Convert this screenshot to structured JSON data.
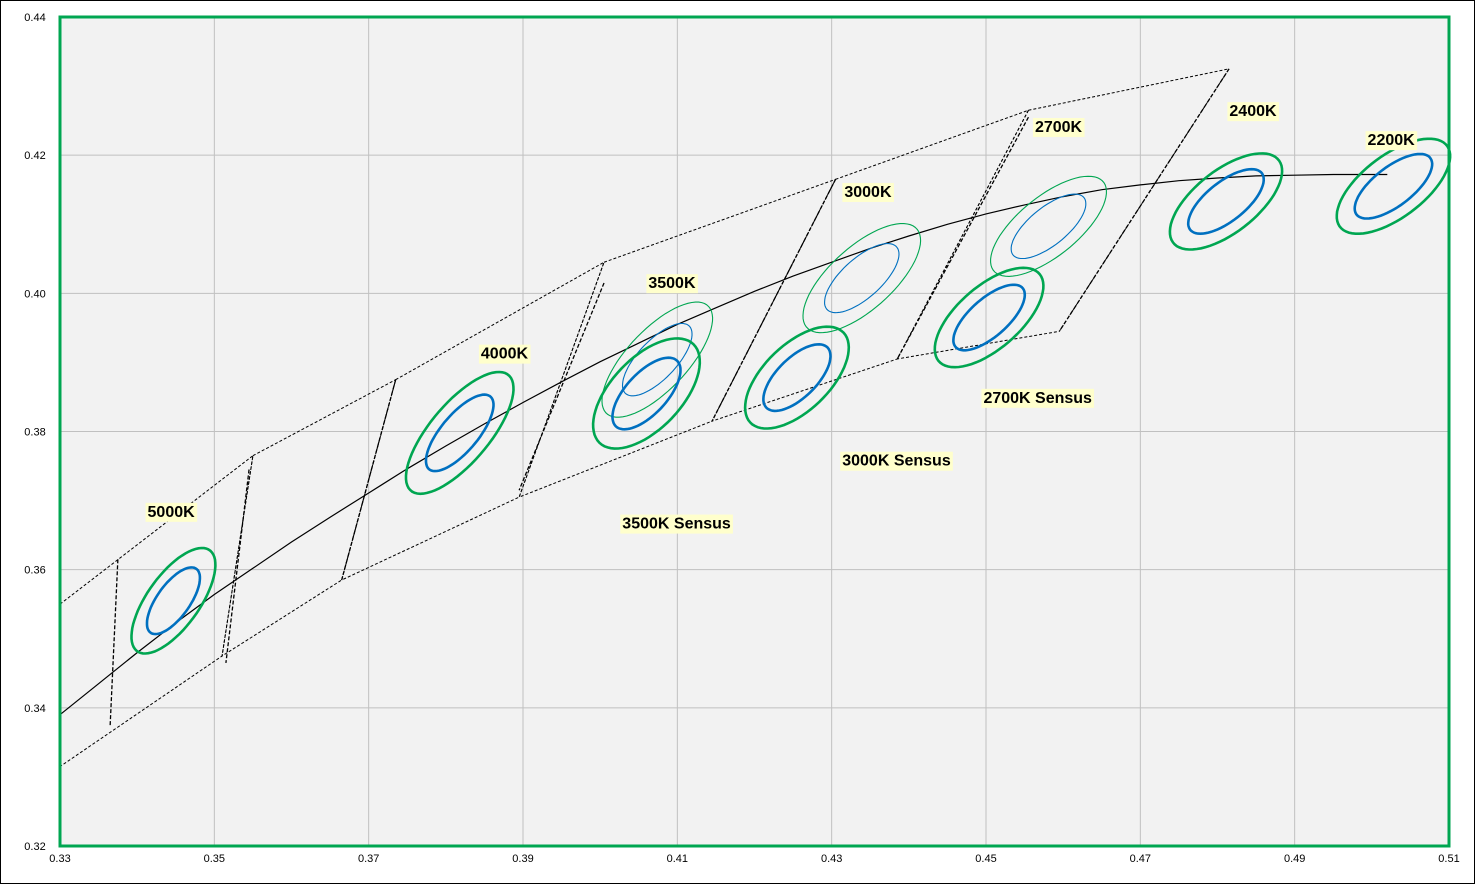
{
  "chart_data": {
    "type": "scatter",
    "title": "",
    "xlabel": "",
    "ylabel": "",
    "xlim": [
      0.33,
      0.51
    ],
    "ylim": [
      0.32,
      0.44
    ],
    "grid": true,
    "x_ticks": [
      "0.33",
      "0.35",
      "0.37",
      "0.39",
      "0.41",
      "0.43",
      "0.45",
      "0.47",
      "0.49",
      "0.51"
    ],
    "y_ticks": [
      "0.32",
      "0.34",
      "0.36",
      "0.38",
      "0.40",
      "0.42",
      "0.44"
    ],
    "colors": {
      "plot_border": "#00a651",
      "plot_background": "#f2f2f2",
      "gridline": "#c0c0c0",
      "ellipse_outer": "#00a651",
      "ellipse_inner": "#0070c0",
      "locus": "#000000",
      "label_background": "#ffffcc"
    },
    "blackbody_locus": [
      {
        "x": 0.33,
        "y": 0.339
      },
      {
        "x": 0.335,
        "y": 0.3435
      },
      {
        "x": 0.34,
        "y": 0.348
      },
      {
        "x": 0.345,
        "y": 0.3523
      },
      {
        "x": 0.35,
        "y": 0.3564
      },
      {
        "x": 0.355,
        "y": 0.3602
      },
      {
        "x": 0.36,
        "y": 0.364
      },
      {
        "x": 0.365,
        "y": 0.3676
      },
      {
        "x": 0.37,
        "y": 0.3711
      },
      {
        "x": 0.375,
        "y": 0.3746
      },
      {
        "x": 0.38,
        "y": 0.3779
      },
      {
        "x": 0.385,
        "y": 0.3811
      },
      {
        "x": 0.39,
        "y": 0.3842
      },
      {
        "x": 0.395,
        "y": 0.3872
      },
      {
        "x": 0.4,
        "y": 0.3901
      },
      {
        "x": 0.405,
        "y": 0.3928
      },
      {
        "x": 0.41,
        "y": 0.3955
      },
      {
        "x": 0.415,
        "y": 0.3979
      },
      {
        "x": 0.42,
        "y": 0.4003
      },
      {
        "x": 0.425,
        "y": 0.4025
      },
      {
        "x": 0.43,
        "y": 0.4045
      },
      {
        "x": 0.435,
        "y": 0.4065
      },
      {
        "x": 0.44,
        "y": 0.4083
      },
      {
        "x": 0.445,
        "y": 0.41
      },
      {
        "x": 0.45,
        "y": 0.4115
      },
      {
        "x": 0.455,
        "y": 0.4128
      },
      {
        "x": 0.46,
        "y": 0.414
      },
      {
        "x": 0.465,
        "y": 0.415
      },
      {
        "x": 0.47,
        "y": 0.4157
      },
      {
        "x": 0.475,
        "y": 0.4163
      },
      {
        "x": 0.48,
        "y": 0.4167
      },
      {
        "x": 0.485,
        "y": 0.417
      },
      {
        "x": 0.49,
        "y": 0.4171
      },
      {
        "x": 0.495,
        "y": 0.4172
      },
      {
        "x": 0.5,
        "y": 0.4172
      },
      {
        "x": 0.502,
        "y": 0.4172
      }
    ],
    "bin_boundaries": [
      [
        [
          0.33,
          0.355
        ],
        [
          0.355,
          0.3765
        ],
        [
          0.351,
          0.3475
        ],
        [
          0.33,
          0.3315
        ]
      ],
      [
        [
          0.355,
          0.3765
        ],
        [
          0.3735,
          0.3875
        ],
        [
          0.3665,
          0.3585
        ],
        [
          0.351,
          0.3475
        ]
      ],
      [
        [
          0.3735,
          0.3875
        ],
        [
          0.4005,
          0.4045
        ],
        [
          0.3895,
          0.3705
        ],
        [
          0.3665,
          0.3585
        ]
      ],
      [
        [
          0.4005,
          0.4045
        ],
        [
          0.4305,
          0.4165
        ],
        [
          0.4145,
          0.3815
        ],
        [
          0.3895,
          0.3705
        ]
      ],
      [
        [
          0.4305,
          0.4165
        ],
        [
          0.4555,
          0.4265
        ],
        [
          0.4385,
          0.3905
        ],
        [
          0.4145,
          0.3815
        ]
      ],
      [
        [
          0.4555,
          0.4265
        ],
        [
          0.4815,
          0.4325
        ],
        [
          0.4595,
          0.3945
        ],
        [
          0.4385,
          0.3905
        ]
      ]
    ],
    "bin_dividers": [
      [
        [
          0.3375,
          0.3615
        ],
        [
          0.3365,
          0.3375
        ]
      ],
      [
        [
          0.3545,
          0.3745
        ],
        [
          0.3515,
          0.3465
        ]
      ],
      [
        [
          0.3735,
          0.3875
        ],
        [
          0.3665,
          0.3585
        ]
      ],
      [
        [
          0.4005,
          0.4015
        ],
        [
          0.3895,
          0.3715
        ]
      ],
      [
        [
          0.4305,
          0.4165
        ],
        [
          0.4145,
          0.3815
        ]
      ],
      [
        [
          0.4555,
          0.4255
        ],
        [
          0.4385,
          0.3905
        ]
      ],
      [
        [
          0.4815,
          0.4325
        ],
        [
          0.4595,
          0.3945
        ]
      ]
    ],
    "ellipses": [
      {
        "cx": 0.3447,
        "cy": 0.3555,
        "inner_a": 0.0055,
        "inner_b": 0.0022,
        "outer_a": 0.0087,
        "outer_b": 0.0035,
        "angle_deg": 58.5,
        "weight": "bold"
      },
      {
        "cx": 0.3818,
        "cy": 0.3798,
        "inner_a": 0.0066,
        "inner_b": 0.0025,
        "outer_a": 0.0105,
        "outer_b": 0.004,
        "angle_deg": 54,
        "weight": "bold"
      },
      {
        "cx": 0.4074,
        "cy": 0.3904,
        "inner_a": 0.0064,
        "inner_b": 0.0026,
        "outer_a": 0.0102,
        "outer_b": 0.0041,
        "angle_deg": 51,
        "weight": "thin"
      },
      {
        "cx": 0.406,
        "cy": 0.3855,
        "inner_a": 0.0062,
        "inner_b": 0.0028,
        "outer_a": 0.0094,
        "outer_b": 0.0048,
        "angle_deg": 52,
        "weight": "bold"
      },
      {
        "cx": 0.4339,
        "cy": 0.4022,
        "inner_a": 0.0064,
        "inner_b": 0.0027,
        "outer_a": 0.0101,
        "outer_b": 0.0043,
        "angle_deg": 46.5,
        "weight": "thin"
      },
      {
        "cx": 0.4255,
        "cy": 0.3878,
        "inner_a": 0.0059,
        "inner_b": 0.0027,
        "outer_a": 0.0089,
        "outer_b": 0.0045,
        "angle_deg": 49.5,
        "weight": "bold"
      },
      {
        "cx": 0.4581,
        "cy": 0.4097,
        "inner_a": 0.0062,
        "inner_b": 0.0026,
        "outer_a": 0.0096,
        "outer_b": 0.0041,
        "angle_deg": 43.5,
        "weight": "thin"
      },
      {
        "cx": 0.4504,
        "cy": 0.3965,
        "inner_a": 0.0061,
        "inner_b": 0.0026,
        "outer_a": 0.0091,
        "outer_b": 0.0043,
        "angle_deg": 46,
        "weight": "bold"
      },
      {
        "cx": 0.4811,
        "cy": 0.4133,
        "inner_a": 0.0062,
        "inner_b": 0.0027,
        "outer_a": 0.0091,
        "outer_b": 0.0043,
        "angle_deg": 43,
        "weight": "bold"
      },
      {
        "cx": 0.5028,
        "cy": 0.4155,
        "inner_a": 0.0063,
        "inner_b": 0.0027,
        "outer_a": 0.0091,
        "outer_b": 0.0043,
        "angle_deg": 42,
        "weight": "bold"
      }
    ],
    "annotations": [
      {
        "text": "5000K",
        "x": 0.3444,
        "y": 0.3683
      },
      {
        "text": "4000K",
        "x": 0.3876,
        "y": 0.3912
      },
      {
        "text": "3500K",
        "x": 0.4093,
        "y": 0.4014
      },
      {
        "text": "3000K",
        "x": 0.4347,
        "y": 0.4146
      },
      {
        "text": "2700K",
        "x": 0.4594,
        "y": 0.424
      },
      {
        "text": "2400K",
        "x": 0.4846,
        "y": 0.4263
      },
      {
        "text": "2200K",
        "x": 0.5025,
        "y": 0.4221
      },
      {
        "text": "3500K Sensus",
        "x": 0.4099,
        "y": 0.3666
      },
      {
        "text": "3000K Sensus",
        "x": 0.4384,
        "y": 0.3757
      },
      {
        "text": "2700K Sensus",
        "x": 0.4567,
        "y": 0.3848
      }
    ]
  }
}
